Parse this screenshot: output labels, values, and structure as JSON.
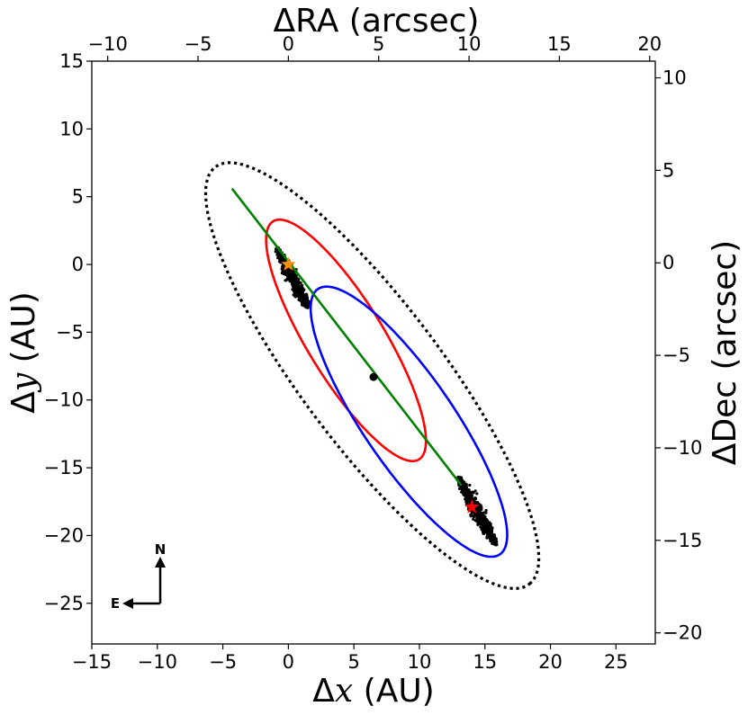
{
  "chart_data": {
    "type": "scatter",
    "xlabel_prefix": "Δ",
    "xlabel_var": "x",
    "xlabel_unit": " (AU)",
    "ylabel_prefix": "Δ",
    "ylabel_var": "y",
    "ylabel_unit": " (AU)",
    "top_xlabel": "ΔRA (arcsec)",
    "right_ylabel": "ΔDec (arcsec)",
    "xlim": [
      -15,
      28
    ],
    "ylim": [
      -28,
      15
    ],
    "xticks": [
      -15,
      -10,
      -5,
      0,
      5,
      10,
      15,
      20,
      25
    ],
    "yticks": [
      -25,
      -20,
      -15,
      -10,
      -5,
      0,
      5,
      10,
      15
    ],
    "ra_lim": [
      -10.88,
      20.31
    ],
    "dec_lim": [
      -20.6,
      10.9
    ],
    "top_ticks": [
      -10,
      -5,
      0,
      5,
      10,
      15,
      20
    ],
    "right_ticks": [
      -20,
      -15,
      -10,
      -5,
      0,
      5,
      10
    ],
    "series": [
      {
        "name": "",
        "kind": "ellipse",
        "style": "dotted",
        "color": "#000000",
        "center": [
          6.4,
          -8.2
        ],
        "semi_axes": [
          19.5,
          5.3
        ],
        "angle_deg": -52
      },
      {
        "name": "",
        "kind": "ellipse",
        "style": "solid",
        "color": "#ff0000",
        "center": [
          4.4,
          -5.6
        ],
        "semi_axes": [
          10.4,
          2.9
        ],
        "angle_deg": -57.5
      },
      {
        "name": "",
        "kind": "ellipse",
        "style": "solid",
        "color": "#0000ff",
        "center": [
          9.2,
          -11.6
        ],
        "semi_axes": [
          12.0,
          3.4
        ],
        "angle_deg": -54.5
      },
      {
        "name": "",
        "kind": "line",
        "color": "#008000",
        "points": [
          [
            -4.3,
            5.6
          ],
          [
            13.2,
            -16.3
          ]
        ]
      },
      {
        "name": "",
        "kind": "cloud",
        "color": "#000000",
        "center": [
          0.3,
          -1.0
        ],
        "half_length": 2.5,
        "half_width": 0.45,
        "angle_deg": -62
      },
      {
        "name": "",
        "kind": "cloud",
        "color": "#000000",
        "center": [
          14.4,
          -18.2
        ],
        "half_length": 2.9,
        "half_width": 0.5,
        "angle_deg": -60
      },
      {
        "name": "",
        "kind": "marker",
        "symbol": "star",
        "color": "#ff8c00",
        "points": [
          [
            0.0,
            0.0
          ]
        ]
      },
      {
        "name": "",
        "kind": "marker",
        "symbol": "star",
        "color": "#ff0000",
        "points": [
          [
            14.0,
            -17.9
          ]
        ]
      },
      {
        "name": "",
        "kind": "marker",
        "symbol": "dot",
        "color": "#000000",
        "points": [
          [
            6.5,
            -8.3
          ]
        ]
      }
    ],
    "compass": {
      "north": "N",
      "east": "E"
    }
  }
}
